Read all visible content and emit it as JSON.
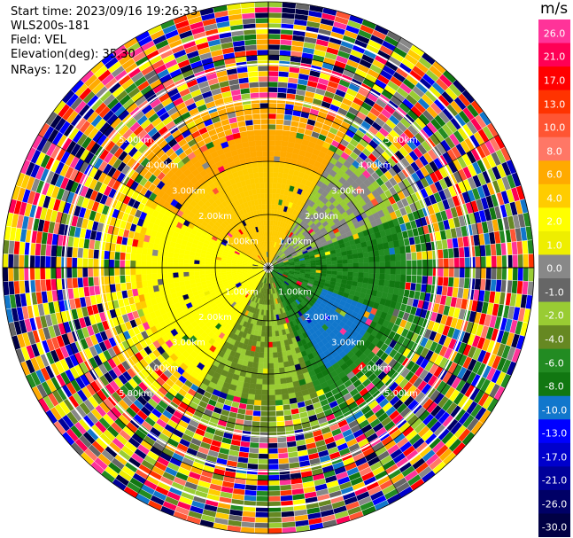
{
  "header": {
    "start_time": "Start time: 2023/09/16 19:26:33",
    "instrument": "WLS200s-181",
    "field": "Field: VEL",
    "elevation": "Elevation(deg): 35.30",
    "nrays": "NRays: 120"
  },
  "ppi": {
    "n_rays": 120,
    "ring_labels": [
      "1.00km",
      "2.00km",
      "3.00km",
      "4.00km",
      "5.00km"
    ],
    "ring_label_color": "#ffffff",
    "grid_color": "#000000"
  },
  "colorbar": {
    "unit": "m/s",
    "ticks": [
      "26.0",
      "21.0",
      "17.0",
      "13.0",
      "10.0",
      "8.0",
      "6.0",
      "4.0",
      "2.0",
      "1.0",
      "0.0",
      "-1.0",
      "-2.0",
      "-4.0",
      "-6.0",
      "-8.0",
      "-10.0",
      "-13.0",
      "-17.0",
      "-21.0",
      "-26.0",
      "-30.0"
    ],
    "colors": [
      "#ff3399",
      "#ff0055",
      "#ff0000",
      "#ff3300",
      "#ff5533",
      "#ff7766",
      "#ffaa00",
      "#ffcc00",
      "#ffff00",
      "#eeee00",
      "#888888",
      "#666666",
      "#99cc33",
      "#668822",
      "#228b22",
      "#117711",
      "#1177cc",
      "#0000ff",
      "#0000cc",
      "#000099",
      "#000066",
      "#000044"
    ]
  }
}
